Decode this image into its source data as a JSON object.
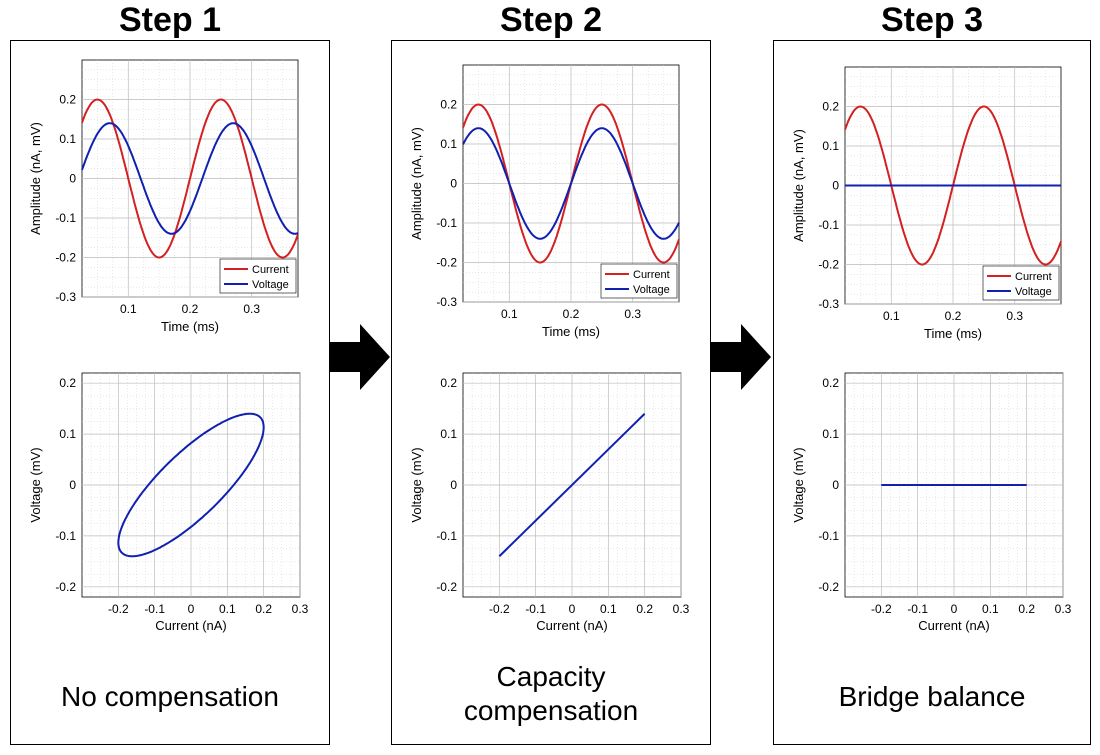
{
  "steps": [
    {
      "title": "Step 1",
      "caption_lines": [
        "No compensation"
      ],
      "time_plot": {
        "ylabel": "Amplitude (nA, mV)",
        "xlabel": "Time (ms)",
        "xlim": [
          0.025,
          0.375
        ],
        "ylim": [
          -0.3,
          0.3
        ],
        "xticks": [
          "0.1",
          "0.2",
          "0.3"
        ],
        "yticks": [
          "0.2",
          "0.1",
          "0",
          "-0.1",
          "-0.2",
          "-0.3"
        ],
        "legend": [
          "Current",
          "Voltage"
        ],
        "current": {
          "amplitude": 0.2,
          "period_ms": 0.2,
          "peak_at_ms": 0.05
        },
        "voltage": {
          "amplitude": 0.14,
          "period_ms": 0.2,
          "peak_at_ms": 0.07
        }
      },
      "xy_plot": {
        "ylabel": "Voltage (mV)",
        "xlabel": "Current (nA)",
        "xlim": [
          -0.3,
          0.3
        ],
        "ylim": [
          -0.22,
          0.22
        ],
        "xticks": [
          "-0.2",
          "-0.1",
          "0",
          "0.1",
          "0.2",
          "0.3"
        ],
        "yticks": [
          "0.2",
          "0.1",
          "0",
          "-0.1",
          "-0.2"
        ],
        "shape": "ellipse"
      }
    },
    {
      "title": "Step 2",
      "caption_lines": [
        "Capacity",
        "compensation"
      ],
      "time_plot": {
        "ylabel": "Amplitude (nA, mV)",
        "xlabel": "Time (ms)",
        "xlim": [
          0.025,
          0.375
        ],
        "ylim": [
          -0.3,
          0.3
        ],
        "xticks": [
          "0.1",
          "0.2",
          "0.3"
        ],
        "yticks": [
          "0.2",
          "0.1",
          "0",
          "-0.1",
          "-0.2",
          "-0.3"
        ],
        "legend": [
          "Current",
          "Voltage"
        ],
        "current": {
          "amplitude": 0.2,
          "period_ms": 0.2,
          "peak_at_ms": 0.05
        },
        "voltage": {
          "amplitude": 0.14,
          "period_ms": 0.2,
          "peak_at_ms": 0.05
        }
      },
      "xy_plot": {
        "ylabel": "Voltage (mV)",
        "xlabel": "Current (nA)",
        "xlim": [
          -0.3,
          0.3
        ],
        "ylim": [
          -0.22,
          0.22
        ],
        "xticks": [
          "-0.2",
          "-0.1",
          "0",
          "0.1",
          "0.2",
          "0.3"
        ],
        "yticks": [
          "0.2",
          "0.1",
          "0",
          "-0.1",
          "-0.2"
        ],
        "shape": "line",
        "slope": 0.7
      }
    },
    {
      "title": "Step 3",
      "caption_lines": [
        "Bridge balance"
      ],
      "time_plot": {
        "ylabel": "Amplitude (nA, mV)",
        "xlabel": "Time (ms)",
        "xlim": [
          0.025,
          0.375
        ],
        "ylim": [
          -0.3,
          0.3
        ],
        "xticks": [
          "0.1",
          "0.2",
          "0.3"
        ],
        "yticks": [
          "0.2",
          "0.1",
          "0",
          "-0.1",
          "-0.2",
          "-0.3"
        ],
        "legend": [
          "Current",
          "Voltage"
        ],
        "current": {
          "amplitude": 0.2,
          "period_ms": 0.2,
          "peak_at_ms": 0.05
        },
        "voltage": {
          "amplitude": 0,
          "period_ms": 0.2,
          "peak_at_ms": 0.05
        }
      },
      "xy_plot": {
        "ylabel": "Voltage (mV)",
        "xlabel": "Current (nA)",
        "xlim": [
          -0.3,
          0.3
        ],
        "ylim": [
          -0.22,
          0.22
        ],
        "xticks": [
          "-0.2",
          "-0.1",
          "0",
          "0.1",
          "0.2",
          "0.3"
        ],
        "yticks": [
          "0.2",
          "0.1",
          "0",
          "-0.1",
          "-0.2"
        ],
        "shape": "line",
        "slope": 0
      }
    }
  ],
  "colors": {
    "current": "#d42020",
    "voltage": "#1020b0",
    "grid": "#d0d0d0",
    "arrow": "#000000"
  }
}
